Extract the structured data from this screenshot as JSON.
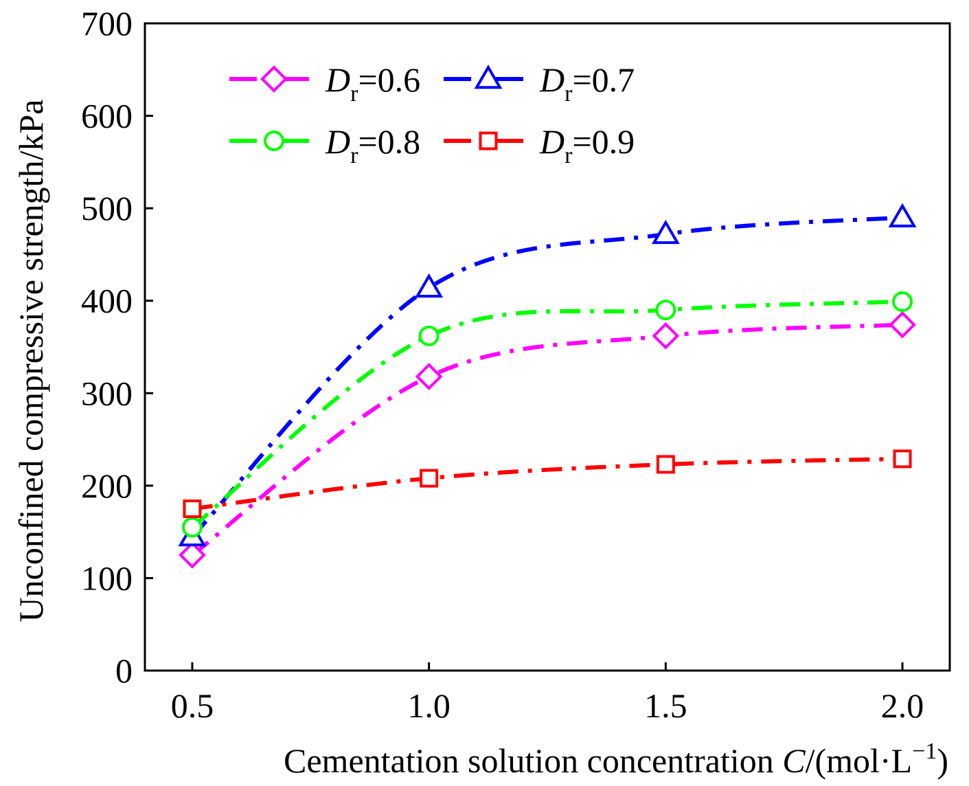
{
  "chart_data": {
    "type": "line",
    "title": "",
    "xlabel": {
      "main": "Cementation solution concentration ",
      "var": "C",
      "unit_open": "/(mol·L",
      "unit_exp": "−1",
      "unit_close": ")"
    },
    "ylabel": "Unconfined compressive strength/kPa",
    "x": [
      0.5,
      1.0,
      1.5,
      2.0
    ],
    "x_tick_labels": [
      "0.5",
      "1.0",
      "1.5",
      "2.0"
    ],
    "xlim": [
      0.4,
      2.1
    ],
    "ylim": [
      0,
      700
    ],
    "y_ticks": [
      0,
      100,
      200,
      300,
      400,
      500,
      600,
      700
    ],
    "y_tick_labels": [
      "0",
      "100",
      "200",
      "300",
      "400",
      "500",
      "600",
      "700"
    ],
    "grid": false,
    "legend_position": "top-left",
    "series": [
      {
        "key": "dr06",
        "name_main": "D",
        "name_sub": "r",
        "name_value": "=0.6",
        "values": [
          125,
          318,
          362,
          374
        ],
        "color": "#ff00ff",
        "marker": "diamond"
      },
      {
        "key": "dr07",
        "name_main": "D",
        "name_sub": "r",
        "name_value": "=0.7",
        "values": [
          145,
          414,
          472,
          490
        ],
        "color": "#0000ff",
        "marker": "triangle"
      },
      {
        "key": "dr08",
        "name_main": "D",
        "name_sub": "r",
        "name_value": "=0.8",
        "values": [
          155,
          362,
          390,
          399
        ],
        "color": "#00ff00",
        "marker": "circle"
      },
      {
        "key": "dr09",
        "name_main": "D",
        "name_sub": "r",
        "name_value": "=0.9",
        "values": [
          175,
          208,
          223,
          229
        ],
        "color": "#ff0000",
        "marker": "square"
      }
    ]
  }
}
